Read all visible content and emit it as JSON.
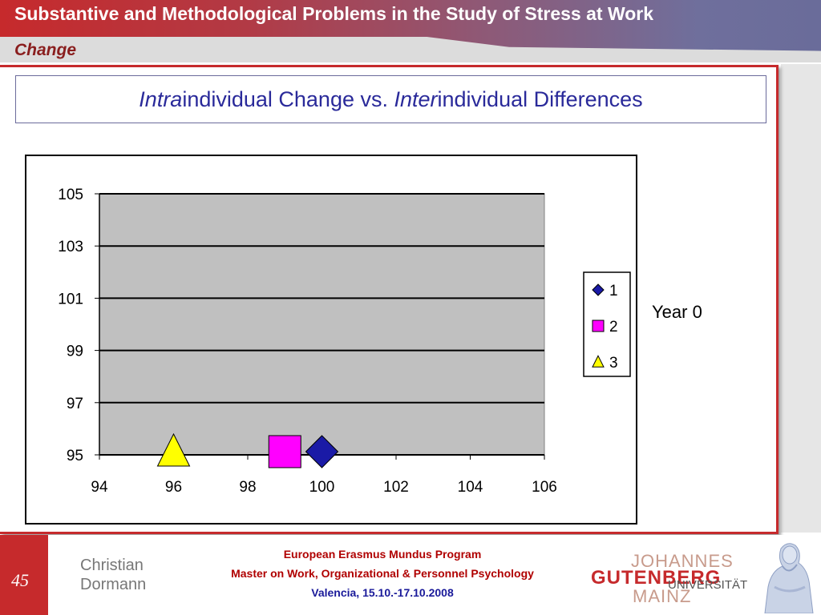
{
  "header": {
    "title": "Substantive and Methodological Problems in the Study of Stress at Work",
    "subtitle": "Change"
  },
  "slide_heading": {
    "prefix1": "Intra",
    "rest1": "individual Change vs. ",
    "prefix2": "Inter",
    "rest2": "individual Differences"
  },
  "annotation": "Year 0",
  "chart_data": {
    "type": "scatter",
    "xlim": [
      94,
      106
    ],
    "ylim": [
      95,
      105
    ],
    "x_ticks": [
      "94",
      "96",
      "98",
      "100",
      "102",
      "104",
      "106"
    ],
    "y_ticks": [
      "95",
      "97",
      "99",
      "101",
      "103",
      "105"
    ],
    "grid": true,
    "legend_position": "right",
    "series": [
      {
        "name": "1",
        "marker": "diamond",
        "color": "#1a1aa6",
        "x": 100,
        "y": 95
      },
      {
        "name": "2",
        "marker": "square",
        "color": "#ff00ff",
        "x": 99,
        "y": 95
      },
      {
        "name": "3",
        "marker": "triangle",
        "color": "#ffff00",
        "x": 96,
        "y": 95
      }
    ],
    "plot_background": "#c0c0c0"
  },
  "footer": {
    "slide_number": "45",
    "author_first": "Christian",
    "author_last": "Dormann",
    "program": "European Erasmus Mundus Program",
    "master": "Master on Work, Organizational & Personnel Psychology",
    "place_date": "Valencia, 15.10.-17.10.2008",
    "logo_line1": "JOHANNES",
    "logo_line2": "GUTENBERG",
    "logo_line3": "UNIVERSITÄT",
    "logo_line4": "MAINZ"
  }
}
